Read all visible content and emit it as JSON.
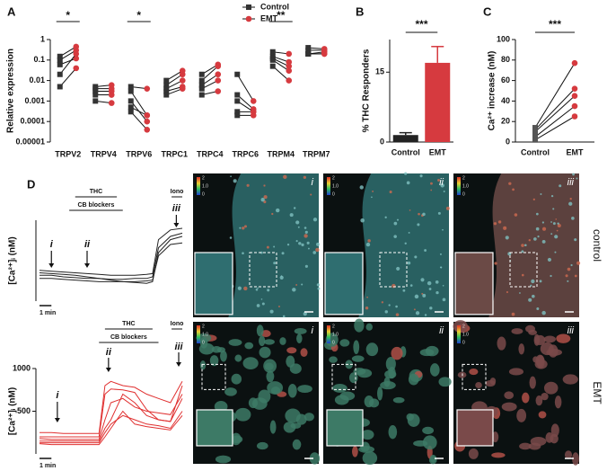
{
  "panel_labels": [
    "A",
    "B",
    "C",
    "D"
  ],
  "chart_data": [
    {
      "type": "paired_dot",
      "y_label": "Relative expression",
      "categories": [
        "TRPV2",
        "TRPV4",
        "TRPV6",
        "TRPC1",
        "TRPC4",
        "TRPC6",
        "TRPM4",
        "TRPM7"
      ],
      "log_scale": true,
      "ylim": [
        1e-05,
        1
      ],
      "yticks": [
        1,
        0.1,
        0.01,
        0.001,
        0.0001,
        1e-05
      ],
      "legend": "top-right",
      "pair_color": "#111111",
      "series": [
        {
          "name": "Control",
          "color": "#333333",
          "marker": "square",
          "values": [
            [
              0.15,
              0.1,
              0.06,
              0.02,
              0.005
            ],
            [
              0.005,
              0.004,
              0.003,
              0.002,
              0.001
            ],
            [
              0.005,
              0.003,
              0.001,
              0.0005,
              0.0003
            ],
            [
              0.01,
              0.006,
              0.004,
              0.003,
              0.002
            ],
            [
              0.02,
              0.01,
              0.006,
              0.004,
              0.002
            ],
            [
              0.02,
              0.002,
              0.001,
              0.0003,
              0.0002
            ],
            [
              0.25,
              0.15,
              0.12,
              0.1,
              0.05
            ],
            [
              0.4,
              0.3,
              0.2,
              0.2,
              0.2
            ]
          ]
        },
        {
          "name": "EMT",
          "color": "#d63a3f",
          "marker": "circle",
          "values": [
            [
              0.45,
              0.3,
              0.12,
              0.2,
              0.04
            ],
            [
              0.006,
              0.004,
              0.003,
              0.002,
              0.0008
            ],
            [
              0.004,
              0.0002,
              0.0001,
              0.0002,
              4e-05
            ],
            [
              0.03,
              0.02,
              0.01,
              0.005,
              0.004
            ],
            [
              0.06,
              0.05,
              0.02,
              0.01,
              0.003
            ],
            [
              0.001,
              0.0004,
              0.0003,
              0.0003,
              0.0002
            ],
            [
              0.2,
              0.08,
              0.05,
              0.03,
              0.01
            ],
            [
              0.35,
              0.3,
              0.25,
              0.2,
              0.2
            ]
          ]
        }
      ],
      "annotations": [
        "*",
        null,
        "*",
        null,
        null,
        null,
        "**",
        null
      ]
    },
    {
      "type": "bar",
      "y_label": "% THC Responders",
      "categories": [
        "Control",
        "EMT"
      ],
      "values": [
        1.5,
        17
      ],
      "errors": [
        0.5,
        3.5
      ],
      "colors": [
        "#222222",
        "#d63a3f"
      ],
      "ylim": [
        0,
        22
      ],
      "yticks": [
        0,
        15
      ],
      "significance": "***"
    },
    {
      "type": "before_after",
      "y_label": "Ca²⁺ increase (nM)",
      "categories": [
        "Control",
        "EMT"
      ],
      "values": [
        [
          14,
          12,
          10,
          5,
          2
        ],
        [
          77,
          52,
          45,
          35,
          25
        ]
      ],
      "colors": [
        "#555555",
        "#d63a3f"
      ],
      "markers": [
        "square",
        "circle"
      ],
      "ylim": [
        0,
        100
      ],
      "yticks": [
        0,
        20,
        40,
        60,
        80,
        100
      ],
      "significance": "***"
    },
    {
      "type": "line",
      "y_label": "[Ca²⁺]ᵢ (nM)",
      "color": "#222222",
      "x": [
        0,
        1,
        2,
        3,
        4,
        5,
        6,
        7,
        8,
        9,
        9.5,
        10,
        11,
        12
      ],
      "xlim": [
        0,
        12
      ],
      "ylim": [
        0,
        500
      ],
      "series": [
        {
          "values": [
            190,
            185,
            180,
            175,
            170,
            165,
            160,
            160,
            160,
            165,
            170,
            380,
            440,
            450
          ]
        },
        {
          "values": [
            160,
            160,
            150,
            145,
            140,
            140,
            135,
            135,
            140,
            140,
            150,
            330,
            400,
            420
          ]
        },
        {
          "values": [
            140,
            140,
            135,
            130,
            125,
            120,
            120,
            120,
            120,
            125,
            130,
            280,
            350,
            360
          ]
        },
        {
          "values": [
            175,
            170,
            165,
            160,
            150,
            140,
            130,
            120,
            115,
            110,
            120,
            300,
            380,
            400
          ]
        }
      ],
      "annotations": {
        "thc": "THC",
        "blockers": "CB blockers",
        "iono": "Iono",
        "markers": [
          "i",
          "ii",
          "iii"
        ]
      },
      "scale_bar": {
        "value": 1,
        "label": "1 min"
      }
    },
    {
      "type": "line",
      "y_label": "[Ca²⁺]ᵢ (nM)",
      "color": "#e03030",
      "x": [
        0,
        1,
        2,
        3,
        4,
        5,
        5.5,
        6,
        7,
        8,
        9,
        10,
        11,
        12
      ],
      "xlim": [
        0,
        12
      ],
      "ylim": [
        0,
        1000
      ],
      "yticks": [
        500,
        1000
      ],
      "series": [
        {
          "values": [
            250,
            250,
            240,
            240,
            240,
            240,
            800,
            850,
            800,
            780,
            700,
            650,
            600,
            850
          ]
        },
        {
          "values": [
            200,
            200,
            200,
            200,
            200,
            200,
            700,
            760,
            750,
            720,
            520,
            400,
            380,
            800
          ]
        },
        {
          "values": [
            180,
            170,
            170,
            170,
            170,
            170,
            400,
            600,
            650,
            550,
            500,
            480,
            460,
            700
          ]
        },
        {
          "values": [
            150,
            150,
            150,
            150,
            150,
            150,
            300,
            400,
            700,
            600,
            450,
            400,
            380,
            650
          ]
        },
        {
          "values": [
            130,
            130,
            130,
            130,
            130,
            130,
            250,
            350,
            450,
            400,
            350,
            330,
            300,
            500
          ]
        },
        {
          "values": [
            120,
            110,
            110,
            110,
            110,
            110,
            200,
            300,
            500,
            350,
            320,
            300,
            280,
            450
          ]
        }
      ],
      "annotations": {
        "thc": "THC",
        "blockers": "CB blockers",
        "iono": "Iono",
        "markers": [
          "i",
          "ii",
          "iii"
        ]
      },
      "scale_bar": {
        "value": 1,
        "label": "1 min"
      }
    }
  ],
  "images": {
    "rows": [
      "control",
      "EMT"
    ],
    "columns": [
      "i",
      "ii",
      "iii"
    ],
    "colorbar": [
      "2",
      "1.0",
      "0"
    ]
  }
}
